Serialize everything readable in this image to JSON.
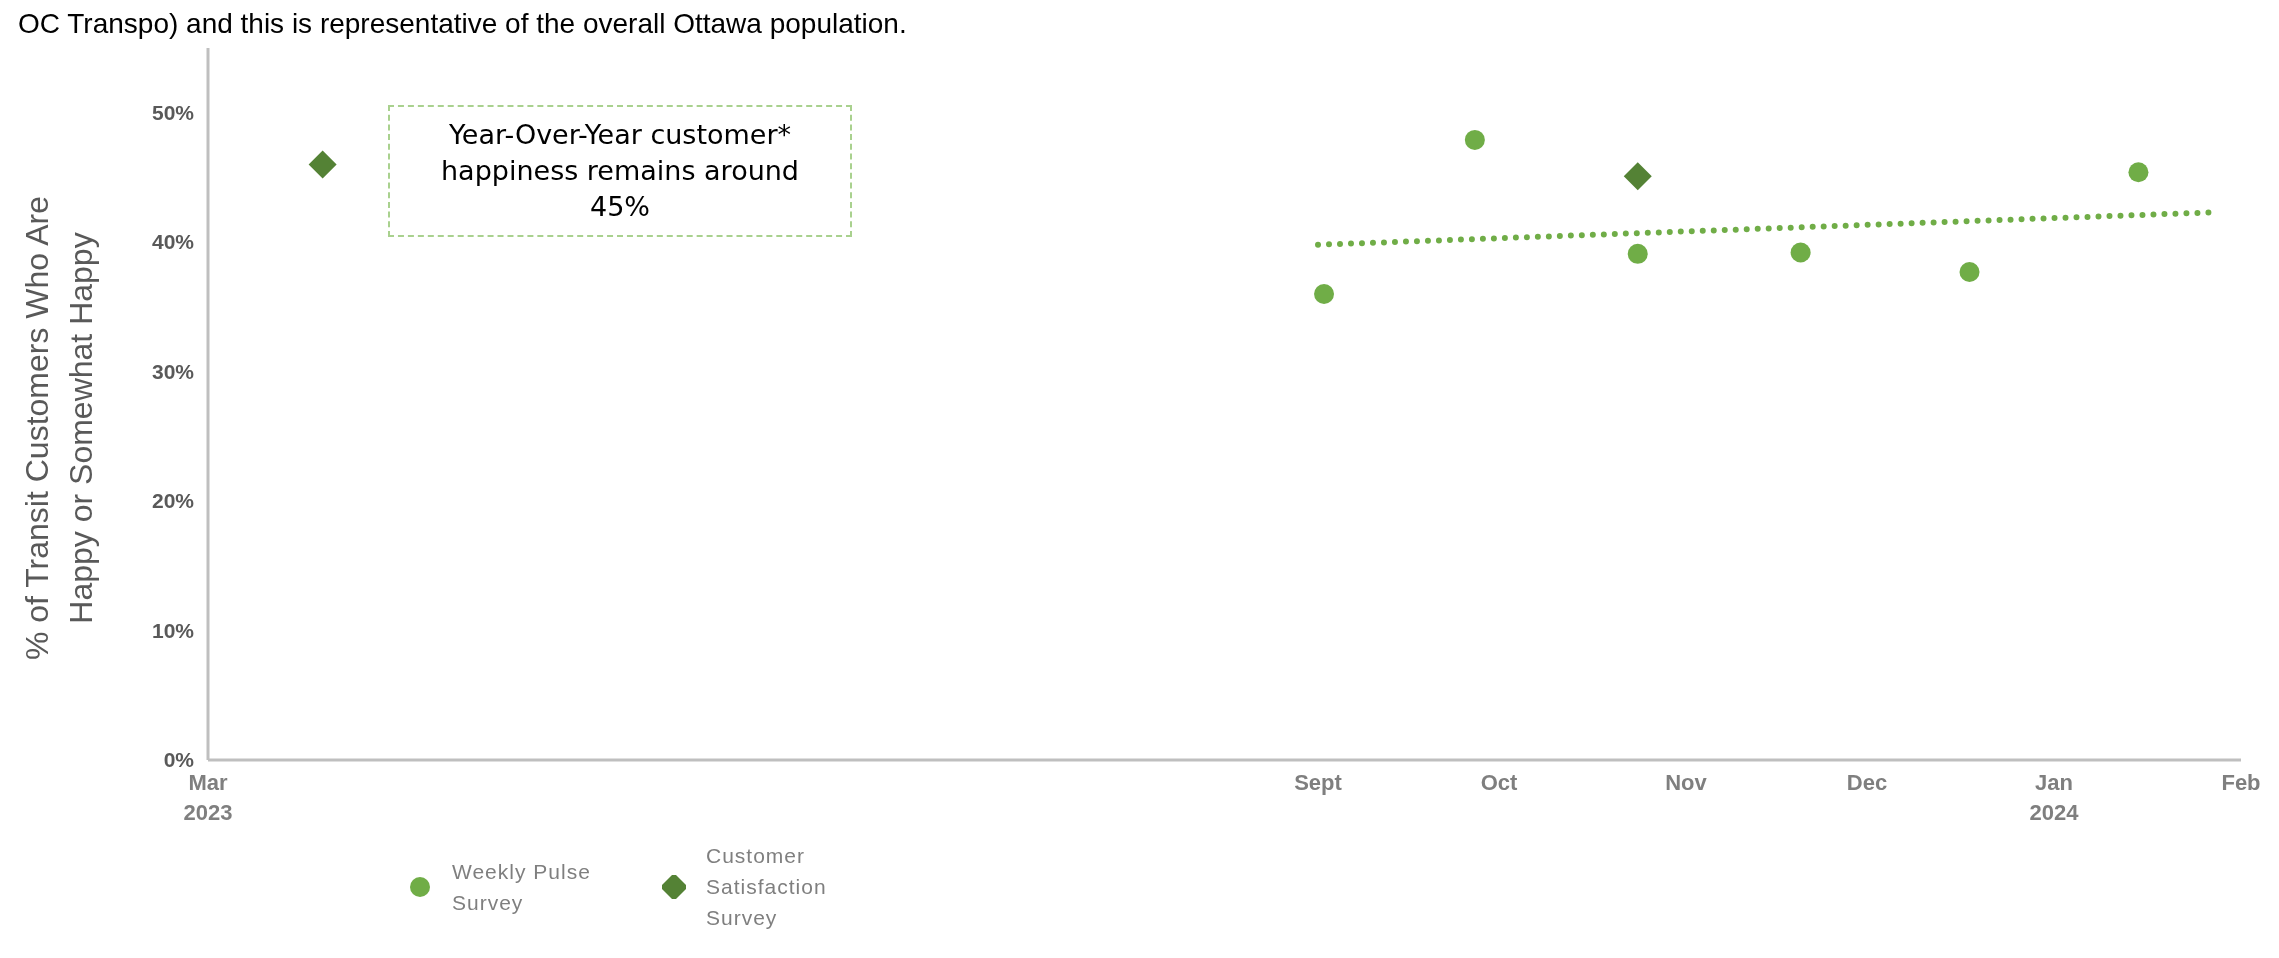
{
  "chart_data": {
    "type": "scatter",
    "ylabel": "% of Transit Customers Who Are\nHappy or Somewhat Happy",
    "annotations": [
      "OC Transpo) and this is representative of the overall Ottawa population.",
      "Year-Over-Year customer* happiness remains around 45%"
    ],
    "xlim": [
      "2023-03-01",
      "2024-02-01"
    ],
    "xticks": [
      {
        "value": "2023-03-01",
        "label": "Mar\n2023"
      },
      {
        "value": "2023-09-01",
        "label": "Sept"
      },
      {
        "value": "2023-10-01",
        "label": "Oct"
      },
      {
        "value": "2023-11-01",
        "label": "Nov"
      },
      {
        "value": "2023-12-01",
        "label": "Dec"
      },
      {
        "value": "2024-01-01",
        "label": "Jan\n2024"
      },
      {
        "value": "2024-02-01",
        "label": "Feb"
      }
    ],
    "ylim": [
      0,
      55
    ],
    "yticks": [
      {
        "value": 0,
        "label": "0%"
      },
      {
        "value": 10,
        "label": "10%"
      },
      {
        "value": 20,
        "label": "20%"
      },
      {
        "value": 30,
        "label": "30%"
      },
      {
        "value": 40,
        "label": "40%"
      },
      {
        "value": 50,
        "label": "50%"
      }
    ],
    "legend": "bottom",
    "series": [
      {
        "name": "Weekly Pulse Survey",
        "color": "#70ad47",
        "marker": "circle",
        "x": [
          "2023-09-02",
          "2023-09-27",
          "2023-10-24",
          "2023-11-20",
          "2023-12-18",
          "2024-01-15"
        ],
        "values": [
          36.0,
          47.9,
          39.1,
          39.2,
          37.7,
          45.4
        ]
      },
      {
        "name": "Customer Satisfaction Survey",
        "color": "#548235",
        "marker": "diamond",
        "x": [
          "2023-03-20",
          "2023-10-24"
        ],
        "values": [
          46.0,
          45.1
        ]
      },
      {
        "type": "line",
        "color": "#70ad47",
        "line_style": "dotted",
        "marker": "none",
        "x": [
          "2023-09-01",
          "2024-01-27"
        ],
        "values": [
          39.8,
          42.3
        ]
      }
    ]
  }
}
